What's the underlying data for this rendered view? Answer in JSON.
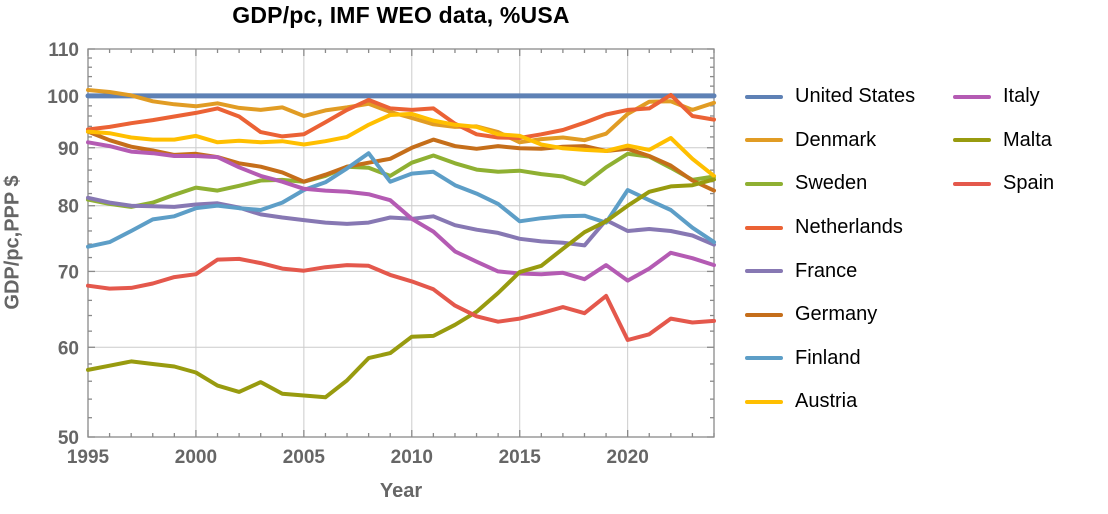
{
  "title": "GDP/pc, IMF WEO data, %USA",
  "axes": {
    "x_label": "Year",
    "y_label": "GDP/pc,PPP $"
  },
  "style": {
    "frame_color": "#8a8a8a",
    "grid_color": "#cccccc",
    "tick_label_color": "#666666",
    "title_color": "#000000",
    "legend_text_color": "#000000",
    "background": "#ffffff"
  },
  "legend": {
    "columns": [
      {
        "items": [
          {
            "label": "United States",
            "color": "#5e81b5"
          },
          {
            "label": "Denmark",
            "color": "#e19c24"
          },
          {
            "label": "Sweden",
            "color": "#8fb032"
          },
          {
            "label": "Netherlands",
            "color": "#eb6235"
          },
          {
            "label": "France",
            "color": "#8778b3"
          },
          {
            "label": "Germany",
            "color": "#c56e1a"
          },
          {
            "label": "Finland",
            "color": "#5d9ec7"
          },
          {
            "label": "Austria",
            "color": "#ffbf00"
          }
        ]
      },
      {
        "items": [
          {
            "label": "Italy",
            "color": "#b45bb3"
          },
          {
            "label": "Malta",
            "color": "#989b0f"
          },
          {
            "label": "Spain",
            "color": "#e4584c"
          }
        ]
      }
    ]
  },
  "chart_data": {
    "type": "line",
    "title": "GDP/pc, IMF WEO data, %USA",
    "xlabel": "Year",
    "ylabel": "GDP/pc,PPP $",
    "xlim": [
      1995,
      2024
    ],
    "ylim": [
      50,
      110
    ],
    "y_scale": "log",
    "grid": true,
    "legend_position": "right",
    "x_major_ticks": [
      1995,
      2000,
      2005,
      2010,
      2015,
      2020
    ],
    "x_tick_labels": [
      "1995",
      "2000",
      "2005",
      "2010",
      "2015",
      "2020"
    ],
    "x_minor_step": 1,
    "y_major_ticks": [
      50,
      60,
      70,
      80,
      90,
      100,
      110
    ],
    "y_tick_labels": [
      "50",
      "60",
      "70",
      "80",
      "90",
      "100",
      "110"
    ],
    "y_minor_step": 2,
    "x_gridlines": [
      2000,
      2005,
      2010,
      2015,
      2020
    ],
    "y_gridlines": [
      60,
      70,
      80,
      90,
      100
    ],
    "years": [
      1995,
      1996,
      1997,
      1998,
      1999,
      2000,
      2001,
      2002,
      2003,
      2004,
      2005,
      2006,
      2007,
      2008,
      2009,
      2010,
      2011,
      2012,
      2013,
      2014,
      2015,
      2016,
      2017,
      2018,
      2019,
      2020,
      2021,
      2022,
      2023,
      2024
    ],
    "series": [
      {
        "name": "United States",
        "color": "#5e81b5",
        "width": 5,
        "values": [
          100,
          100,
          100,
          100,
          100,
          100,
          100,
          100,
          100,
          100,
          100,
          100,
          100,
          100,
          100,
          100,
          100,
          100,
          100,
          100,
          100,
          100,
          100,
          100,
          100,
          100,
          100,
          100,
          100,
          100
        ]
      },
      {
        "name": "Denmark",
        "color": "#e19c24",
        "width": 4,
        "values": [
          101.2,
          100.8,
          100.1,
          98.9,
          98.3,
          97.9,
          98.5,
          97.6,
          97.2,
          97.7,
          96.0,
          97.1,
          97.7,
          98.4,
          96.8,
          95.6,
          94.4,
          93.9,
          94.0,
          92.9,
          91.0,
          91.6,
          91.9,
          91.4,
          92.6,
          96.4,
          98.8,
          98.9,
          97.2,
          98.6
        ]
      },
      {
        "name": "Sweden",
        "color": "#8fb032",
        "width": 4,
        "values": [
          81.0,
          80.3,
          79.8,
          80.5,
          81.8,
          83.0,
          82.5,
          83.3,
          84.2,
          84.3,
          84.0,
          85.0,
          86.6,
          86.4,
          85.0,
          87.3,
          88.6,
          87.2,
          86.1,
          85.7,
          85.9,
          85.3,
          84.9,
          83.6,
          86.5,
          88.9,
          88.4,
          86.4,
          84.3,
          84.9
        ]
      },
      {
        "name": "Netherlands",
        "color": "#eb6235",
        "width": 4,
        "values": [
          93.4,
          93.9,
          94.6,
          95.2,
          95.9,
          96.6,
          97.5,
          95.9,
          92.9,
          92.1,
          92.5,
          94.8,
          97.2,
          99.2,
          97.5,
          97.2,
          97.5,
          94.5,
          92.5,
          91.9,
          91.8,
          92.5,
          93.3,
          94.7,
          96.3,
          97.2,
          97.5,
          100.2,
          96.0,
          95.3
        ]
      },
      {
        "name": "France",
        "color": "#8778b3",
        "width": 4,
        "values": [
          81.3,
          80.5,
          80.0,
          79.9,
          79.8,
          80.2,
          80.4,
          79.7,
          78.6,
          78.1,
          77.7,
          77.3,
          77.1,
          77.3,
          78.1,
          77.9,
          78.3,
          76.9,
          76.2,
          75.7,
          74.8,
          74.4,
          74.2,
          73.8,
          77.7,
          76.0,
          76.3,
          76.0,
          75.3,
          73.9
        ]
      },
      {
        "name": "Germany",
        "color": "#c56e1a",
        "width": 4,
        "values": [
          93.0,
          91.4,
          90.2,
          89.5,
          88.7,
          88.9,
          88.3,
          87.2,
          86.6,
          85.6,
          84.0,
          85.2,
          86.6,
          87.3,
          88.0,
          90.0,
          91.5,
          90.3,
          89.8,
          90.3,
          89.9,
          89.8,
          90.2,
          90.3,
          89.4,
          89.8,
          88.5,
          86.8,
          84.2,
          82.5
        ]
      },
      {
        "name": "Finland",
        "color": "#5d9ec7",
        "width": 4,
        "values": [
          73.6,
          74.3,
          76.0,
          77.8,
          78.3,
          79.6,
          80.0,
          79.6,
          79.3,
          80.5,
          82.6,
          83.9,
          86.3,
          89.0,
          84.0,
          85.4,
          85.7,
          83.4,
          82.0,
          80.3,
          77.5,
          78.0,
          78.3,
          78.4,
          77.3,
          82.6,
          80.9,
          79.3,
          76.5,
          74.3
        ]
      },
      {
        "name": "Austria",
        "color": "#ffbf00",
        "width": 4,
        "values": [
          93.0,
          92.7,
          91.9,
          91.5,
          91.5,
          92.2,
          91.0,
          91.3,
          91.0,
          91.2,
          90.6,
          91.2,
          92.0,
          94.3,
          96.2,
          96.4,
          95.1,
          94.3,
          93.9,
          92.5,
          92.2,
          90.6,
          89.9,
          89.6,
          89.4,
          90.4,
          89.6,
          91.8,
          88.0,
          85.0
        ]
      },
      {
        "name": "Italy",
        "color": "#b45bb3",
        "width": 4,
        "values": [
          91.0,
          90.3,
          89.3,
          89.0,
          88.5,
          88.5,
          88.3,
          86.5,
          85.0,
          84.0,
          82.8,
          82.5,
          82.3,
          81.9,
          80.9,
          77.9,
          75.9,
          72.9,
          71.4,
          70.0,
          69.7,
          69.6,
          69.8,
          68.9,
          70.9,
          68.7,
          70.4,
          72.7,
          71.9,
          70.9
        ]
      },
      {
        "name": "Malta",
        "color": "#989b0f",
        "width": 4,
        "values": [
          57.3,
          57.8,
          58.3,
          58.0,
          57.7,
          57.0,
          55.5,
          54.8,
          55.9,
          54.6,
          54.4,
          54.2,
          56.1,
          58.7,
          59.3,
          61.3,
          61.4,
          62.8,
          64.5,
          67.0,
          69.9,
          70.8,
          73.3,
          75.8,
          77.5,
          80.0,
          82.3,
          83.2,
          83.4,
          84.4
        ]
      },
      {
        "name": "Spain",
        "color": "#e4584c",
        "width": 4,
        "values": [
          68.0,
          67.6,
          67.7,
          68.3,
          69.2,
          69.6,
          71.7,
          71.8,
          71.2,
          70.4,
          70.1,
          70.6,
          70.9,
          70.8,
          69.5,
          68.6,
          67.5,
          65.3,
          63.9,
          63.2,
          63.6,
          64.3,
          65.1,
          64.3,
          66.6,
          60.9,
          61.6,
          63.6,
          63.1,
          63.3
        ]
      }
    ]
  }
}
